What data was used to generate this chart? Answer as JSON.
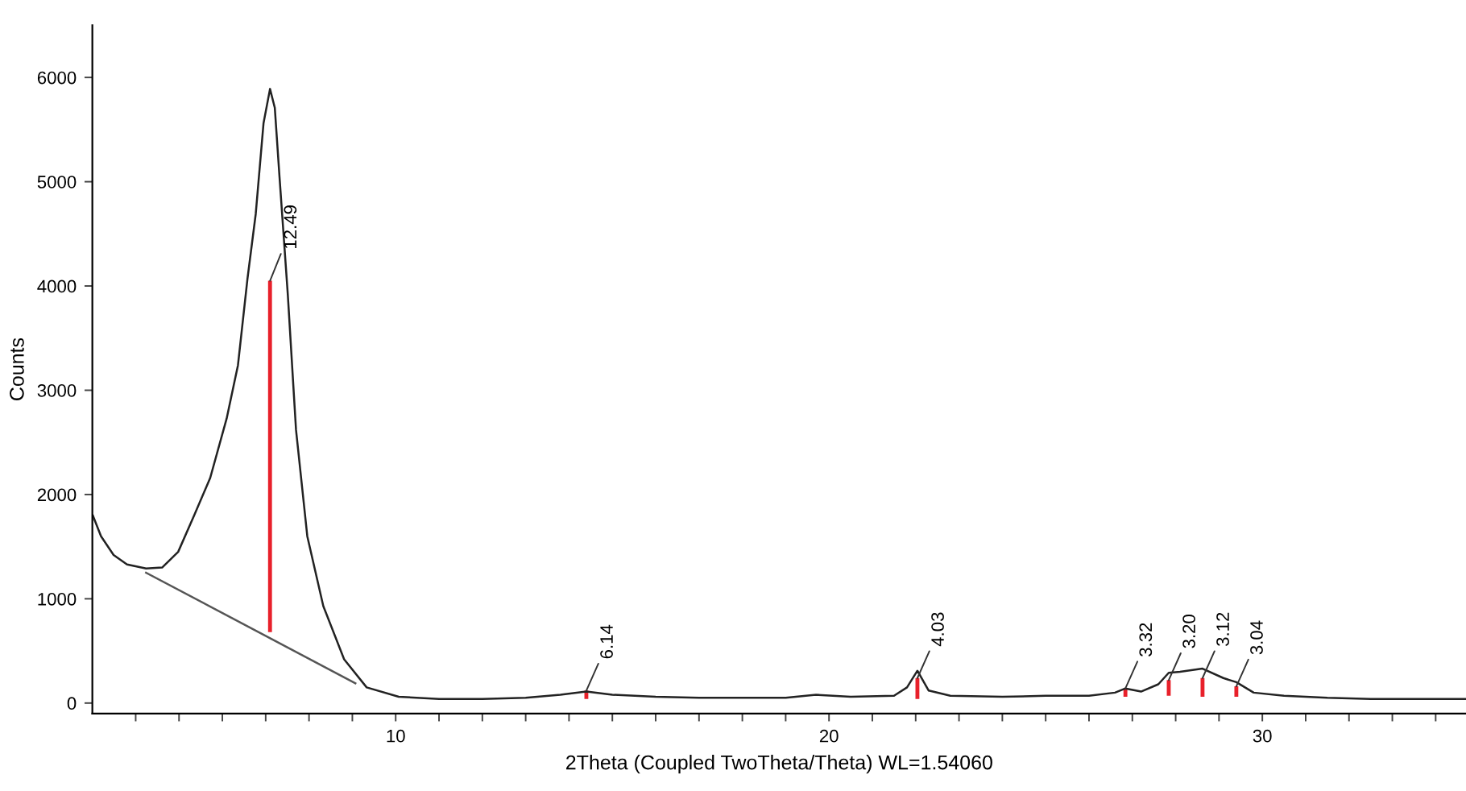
{
  "chart_data": {
    "type": "line",
    "xlabel": "2Theta (Coupled TwoTheta/Theta) WL=1.54060",
    "ylabel": "Counts",
    "xlim": [
      3,
      34.7
    ],
    "ylim": [
      -100,
      6500
    ],
    "xticks": [
      {
        "value": 4,
        "label": null
      },
      {
        "value": 5,
        "label": null
      },
      {
        "value": 6,
        "label": null
      },
      {
        "value": 7,
        "label": null
      },
      {
        "value": 8,
        "label": null
      },
      {
        "value": 9,
        "label": null
      },
      10,
      {
        "value": 11,
        "label": null
      },
      {
        "value": 12,
        "label": null
      },
      {
        "value": 13,
        "label": null
      },
      {
        "value": 14,
        "label": null
      },
      {
        "value": 15,
        "label": null
      },
      {
        "value": 16,
        "label": null
      },
      {
        "value": 17,
        "label": null
      },
      {
        "value": 18,
        "label": null
      },
      {
        "value": 19,
        "label": null
      },
      20,
      {
        "value": 21,
        "label": null
      },
      {
        "value": 22,
        "label": null
      },
      {
        "value": 23,
        "label": null
      },
      {
        "value": 24,
        "label": null
      },
      {
        "value": 25,
        "label": null
      },
      {
        "value": 26,
        "label": null
      },
      {
        "value": 27,
        "label": null
      },
      {
        "value": 28,
        "label": null
      },
      {
        "value": 29,
        "label": null
      },
      30,
      {
        "value": 31,
        "label": null
      },
      {
        "value": 32,
        "label": null
      },
      {
        "value": 33,
        "label": null
      },
      {
        "value": 34,
        "label": null
      }
    ],
    "yticks": [
      0,
      1000,
      2000,
      3000,
      4000,
      5000,
      6000
    ],
    "grid": false,
    "legend": false,
    "marker": "none",
    "line_style": "solid",
    "series": [
      {
        "color": "#222222",
        "x": [
          3.01,
          3.2,
          3.49,
          3.8,
          4.24,
          4.61,
          4.98,
          5.35,
          5.72,
          6.1,
          6.36,
          6.58,
          6.77,
          6.95,
          7.1,
          7.21,
          7.32,
          7.51,
          7.7,
          7.96,
          8.33,
          8.81,
          9.33,
          10.07,
          11,
          12,
          13,
          13.8,
          14.4,
          15,
          16,
          17,
          18,
          19,
          19.7,
          20.5,
          21.5,
          21.8,
          22.04,
          22.3,
          22.8,
          24,
          25,
          26,
          26.6,
          26.84,
          27.2,
          27.6,
          27.84,
          28.1,
          28.62,
          29.1,
          29.4,
          29.8,
          30.5,
          31.5,
          32.5,
          33.5,
          34.7
        ],
        "values": [
          1800,
          1600,
          1420,
          1330,
          1290,
          1300,
          1450,
          1800,
          2160,
          2730,
          3240,
          4070,
          4690,
          5560,
          5890,
          5710,
          5040,
          3920,
          2620,
          1600,
          930,
          420,
          150,
          60,
          40,
          40,
          50,
          80,
          110,
          80,
          60,
          50,
          50,
          50,
          80,
          60,
          70,
          150,
          310,
          120,
          70,
          60,
          70,
          70,
          100,
          140,
          110,
          180,
          290,
          300,
          330,
          240,
          200,
          100,
          70,
          50,
          40,
          40,
          40
        ]
      },
      {
        "type": "line",
        "color": "#555555",
        "x": [
          4.24,
          9.07
        ],
        "values": [
          1250,
          190
        ]
      },
      {
        "type": "bar",
        "color": "#e8202a",
        "x": [
          7.1,
          14.4,
          22.04,
          26.84,
          27.84,
          28.62,
          29.4
        ],
        "base": [
          680,
          40,
          40,
          60,
          70,
          60,
          60
        ],
        "values": [
          3370,
          80,
          200,
          80,
          150,
          180,
          100
        ]
      }
    ],
    "annotations": [
      {
        "text": "12.49",
        "x": 7.1,
        "y": 4050
      },
      {
        "text": "6.14",
        "x": 14.4,
        "y": 120
      },
      {
        "text": "4.03",
        "x": 22.04,
        "y": 240
      },
      {
        "text": "3.32",
        "x": 26.84,
        "y": 140
      },
      {
        "text": "3.20",
        "x": 27.84,
        "y": 220
      },
      {
        "text": "3.12",
        "x": 28.62,
        "y": 240
      },
      {
        "text": "3.04",
        "x": 29.4,
        "y": 160
      }
    ]
  }
}
